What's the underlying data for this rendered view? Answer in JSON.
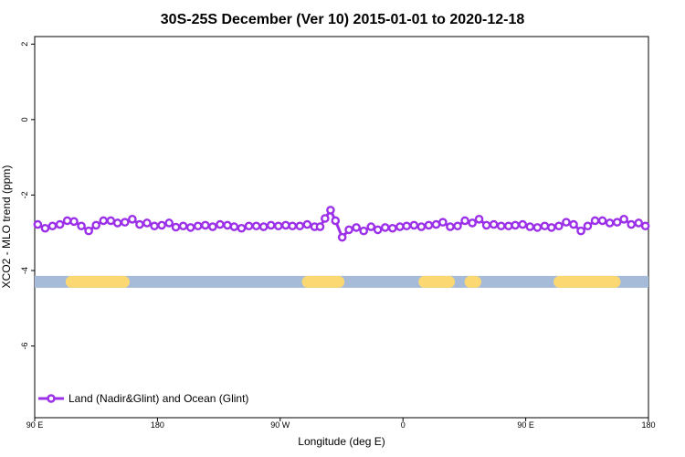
{
  "chart_data": {
    "type": "line",
    "title": "30S-25S December (Ver 10)   2015-01-01 to 2020-12-18",
    "xlabel": "Longitude (deg E)",
    "ylabel": "XCO2 - MLO trend (ppm)",
    "xlim": [
      0,
      100
    ],
    "ylim": [
      -7.9,
      2.2
    ],
    "y_ticks": [
      {
        "value": 2,
        "label": "2"
      },
      {
        "value": 0,
        "label": "0"
      },
      {
        "value": -2,
        "label": "-2"
      },
      {
        "value": -4,
        "label": "-4"
      },
      {
        "value": -6,
        "label": "-6"
      }
    ],
    "x_ticks": [
      {
        "value": 0,
        "label": "90 E"
      },
      {
        "value": 20,
        "label": "180"
      },
      {
        "value": 40,
        "label": "90 W"
      },
      {
        "value": 60,
        "label": "0"
      },
      {
        "value": 80,
        "label": "90 E"
      },
      {
        "value": 100,
        "label": "180"
      }
    ],
    "series": [
      {
        "name": "Land (Nadir&Glint) and Ocean (Glint)",
        "color": "#9b30e8",
        "x": [
          0.5,
          1.7,
          2.9,
          4.1,
          5.3,
          6.4,
          7.6,
          8.8,
          10.0,
          11.2,
          12.4,
          13.5,
          14.7,
          15.9,
          17.1,
          18.3,
          19.5,
          20.7,
          21.9,
          23.0,
          24.2,
          25.4,
          26.6,
          27.8,
          29.0,
          30.2,
          31.4,
          32.5,
          33.7,
          34.9,
          36.1,
          37.3,
          38.5,
          39.7,
          40.9,
          42.0,
          43.2,
          44.4,
          45.6,
          46.5,
          47.3,
          48.2,
          49.0,
          50.1,
          51.2,
          52.4,
          53.6,
          54.8,
          55.9,
          57.1,
          58.3,
          59.5,
          60.6,
          61.8,
          63.0,
          64.2,
          65.4,
          66.5,
          67.7,
          68.9,
          70.1,
          71.3,
          72.4,
          73.6,
          74.8,
          76.0,
          77.2,
          78.3,
          79.5,
          80.7,
          81.9,
          83.1,
          84.2,
          85.4,
          86.6,
          87.8,
          89.0,
          90.1,
          91.3,
          92.5,
          93.7,
          94.9,
          96.0,
          97.2,
          98.4,
          99.5
        ],
        "y": [
          -2.78,
          -2.88,
          -2.82,
          -2.78,
          -2.68,
          -2.7,
          -2.82,
          -2.95,
          -2.8,
          -2.68,
          -2.68,
          -2.74,
          -2.72,
          -2.64,
          -2.78,
          -2.74,
          -2.82,
          -2.8,
          -2.74,
          -2.85,
          -2.82,
          -2.86,
          -2.82,
          -2.8,
          -2.84,
          -2.78,
          -2.8,
          -2.84,
          -2.88,
          -2.82,
          -2.82,
          -2.84,
          -2.8,
          -2.82,
          -2.8,
          -2.82,
          -2.82,
          -2.78,
          -2.84,
          -2.84,
          -2.62,
          -2.4,
          -2.68,
          -3.12,
          -2.92,
          -2.86,
          -2.95,
          -2.84,
          -2.92,
          -2.86,
          -2.88,
          -2.84,
          -2.82,
          -2.8,
          -2.84,
          -2.8,
          -2.78,
          -2.72,
          -2.84,
          -2.82,
          -2.68,
          -2.74,
          -2.64,
          -2.8,
          -2.78,
          -2.82,
          -2.82,
          -2.8,
          -2.78,
          -2.84,
          -2.86,
          -2.82,
          -2.86,
          -2.82,
          -2.72,
          -2.78,
          -2.95,
          -2.82,
          -2.68,
          -2.68,
          -2.74,
          -2.72,
          -2.64,
          -2.78,
          -2.74,
          -2.82
        ]
      }
    ],
    "surface_band": {
      "y": -4.3,
      "base_color": "#a6bbd8",
      "land_color": "#fcd873",
      "land_ranges": [
        [
          6.0,
          14.5
        ],
        [
          44.5,
          49.5
        ],
        [
          63.5,
          67.5
        ],
        [
          71.0,
          71.8
        ],
        [
          85.5,
          94.5
        ]
      ]
    },
    "legend": {
      "position": "bottom-left",
      "label": "Land (Nadir&Glint) and Ocean (Glint)"
    }
  }
}
